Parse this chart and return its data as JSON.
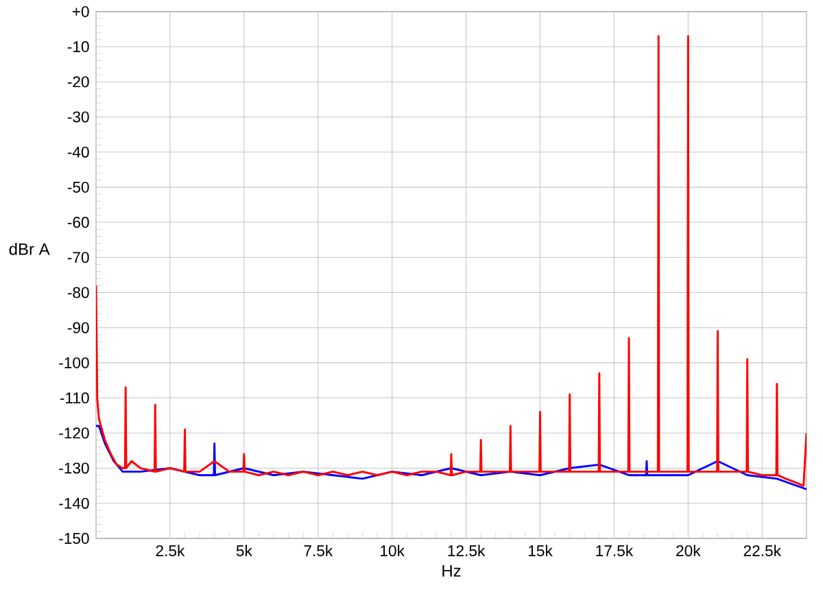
{
  "chart_data": {
    "type": "line",
    "xlabel": "Hz",
    "ylabel": "dBr A",
    "xlim": [
      0,
      24000
    ],
    "ylim": [
      -150,
      0
    ],
    "xticks": [
      {
        "value": 2500,
        "label": "2.5k"
      },
      {
        "value": 5000,
        "label": "5k"
      },
      {
        "value": 7500,
        "label": "7.5k"
      },
      {
        "value": 10000,
        "label": "10k"
      },
      {
        "value": 12500,
        "label": "12.5k"
      },
      {
        "value": 15000,
        "label": "15k"
      },
      {
        "value": 17500,
        "label": "17.5k"
      },
      {
        "value": 20000,
        "label": "20k"
      },
      {
        "value": 22500,
        "label": "22.5k"
      }
    ],
    "yticks": [
      {
        "value": 0,
        "label": "+0"
      },
      -10,
      -20,
      -30,
      -40,
      -50,
      -60,
      -70,
      -80,
      -90,
      -100,
      -110,
      -120,
      -130,
      -140,
      -150
    ],
    "grid": true,
    "marker": "none",
    "line_style": "solid",
    "series": [
      {
        "color": "#0000ff",
        "x": [
          0,
          100,
          300,
          600,
          900,
          1500,
          2500,
          3500,
          3980,
          4000,
          4020,
          5000,
          6000,
          7000,
          8000,
          9000,
          10000,
          11000,
          12000,
          13000,
          14000,
          15000,
          16000,
          17000,
          18000,
          18580,
          18600,
          18620,
          20000,
          21000,
          22000,
          23000,
          24000
        ],
        "values": [
          -118,
          -118,
          -123,
          -128,
          -131,
          -131,
          -130,
          -132,
          -132,
          -123,
          -132,
          -130,
          -132,
          -131,
          -132,
          -133,
          -131,
          -132,
          -130,
          -132,
          -131,
          -132,
          -130,
          -129,
          -132,
          -132,
          -128,
          -132,
          -132,
          -128,
          -132,
          -133,
          -136
        ]
      },
      {
        "color": "#ff0000",
        "x": [
          0,
          40,
          100,
          200,
          300,
          500,
          700,
          900,
          980,
          1000,
          1020,
          1200,
          1500,
          1980,
          2000,
          2020,
          2500,
          2980,
          3000,
          3020,
          3500,
          4000,
          4500,
          4980,
          5000,
          5020,
          5500,
          6000,
          6500,
          7000,
          7500,
          8000,
          8500,
          9000,
          9500,
          10000,
          10500,
          11000,
          11500,
          11980,
          12000,
          12020,
          12500,
          12980,
          13000,
          13020,
          13500,
          13980,
          14000,
          14020,
          14500,
          14980,
          15000,
          15020,
          15500,
          15980,
          16000,
          16020,
          16500,
          16980,
          17000,
          17020,
          17500,
          17980,
          18000,
          18020,
          18500,
          18980,
          19000,
          19020,
          19500,
          19980,
          20000,
          20020,
          20500,
          20980,
          21000,
          21020,
          21500,
          21980,
          22000,
          22020,
          22500,
          22980,
          23000,
          23020,
          23300,
          23600,
          23900,
          24000
        ],
        "values": [
          -78,
          -110,
          -116,
          -119,
          -122,
          -126,
          -129,
          -130,
          -130,
          -107,
          -130,
          -128,
          -130,
          -131,
          -112,
          -131,
          -130,
          -131,
          -119,
          -131,
          -131,
          -128,
          -131,
          -131,
          -126,
          -131,
          -132,
          -131,
          -132,
          -131,
          -132,
          -131,
          -132,
          -131,
          -132,
          -131,
          -132,
          -131,
          -131,
          -132,
          -126,
          -132,
          -131,
          -131,
          -122,
          -131,
          -131,
          -131,
          -118,
          -131,
          -131,
          -131,
          -114,
          -131,
          -131,
          -131,
          -109,
          -131,
          -131,
          -131,
          -103,
          -131,
          -131,
          -131,
          -93,
          -131,
          -131,
          -131,
          -7,
          -131,
          -131,
          -131,
          -7,
          -131,
          -131,
          -131,
          -91,
          -131,
          -131,
          -131,
          -99,
          -131,
          -132,
          -132,
          -106,
          -132,
          -133,
          -134,
          -135,
          -120
        ]
      }
    ]
  }
}
